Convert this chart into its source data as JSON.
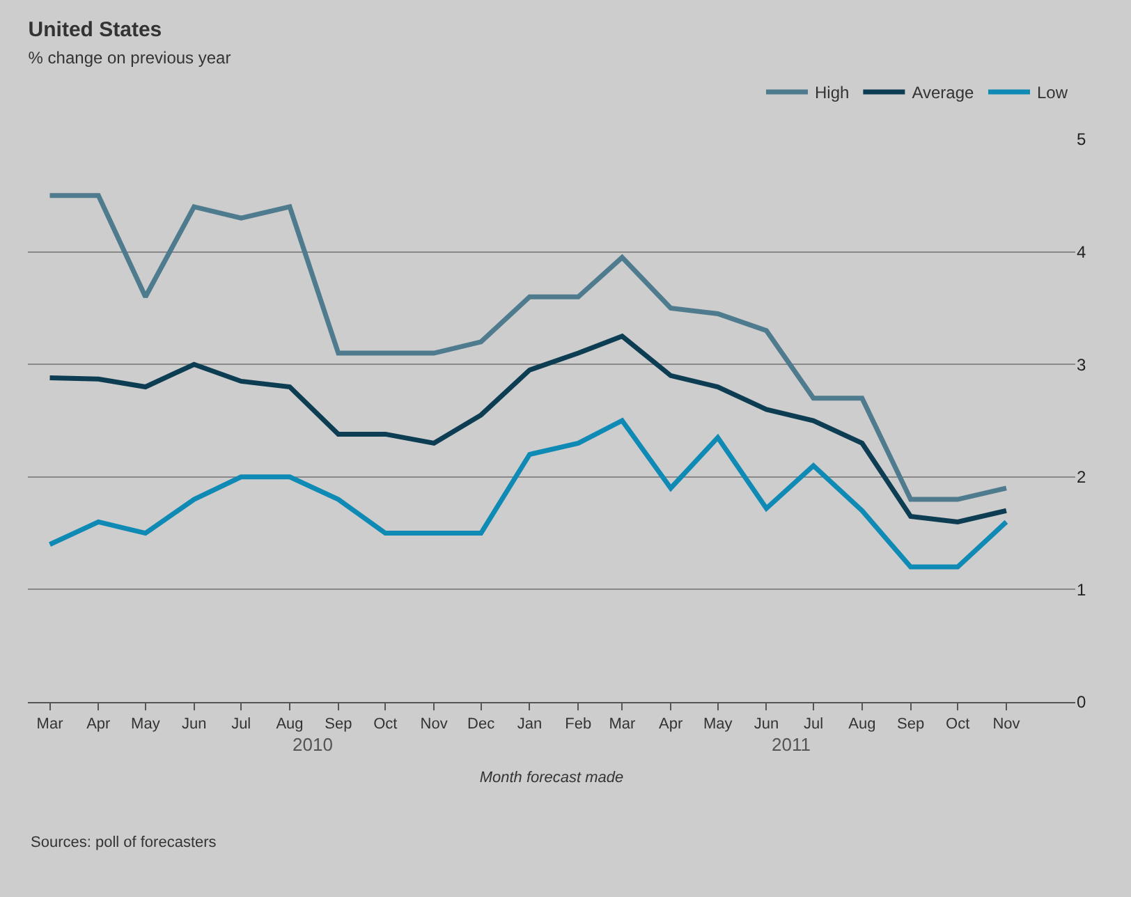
{
  "chart_data": {
    "type": "line",
    "title": "United States",
    "subtitle": "% change on previous year",
    "xlabel": "Month forecast made",
    "x": [
      "2010-03",
      "2010-04",
      "2010-05",
      "2010-06",
      "2010-07",
      "2010-08",
      "2010-09",
      "2010-10",
      "2010-11",
      "2010-12",
      "2011-01",
      "2011-02",
      "2011-03",
      "2011-04",
      "2011-05",
      "2011-06",
      "2011-07",
      "2011-08",
      "2011-09",
      "2011-10",
      "2011-11"
    ],
    "series": [
      {
        "name": "High",
        "color": "#4f7b8e",
        "values": [
          4.5,
          4.5,
          3.6,
          4.4,
          4.3,
          4.4,
          3.1,
          3.1,
          3.1,
          3.2,
          3.6,
          3.6,
          3.95,
          3.5,
          3.45,
          3.3,
          2.7,
          2.7,
          1.8,
          1.8,
          1.9
        ]
      },
      {
        "name": "Average",
        "color": "#0d3d52",
        "values": [
          2.88,
          2.87,
          2.8,
          3.0,
          2.85,
          2.8,
          2.38,
          2.38,
          2.3,
          2.55,
          2.95,
          3.1,
          3.25,
          2.9,
          2.8,
          2.6,
          2.5,
          2.3,
          1.65,
          1.6,
          1.7
        ]
      },
      {
        "name": "Low",
        "color": "#0f8ab5",
        "values": [
          1.4,
          1.6,
          1.5,
          1.8,
          2.0,
          2.0,
          1.8,
          1.5,
          1.5,
          1.5,
          2.2,
          2.3,
          2.5,
          1.9,
          2.35,
          1.72,
          2.1,
          1.7,
          1.2,
          1.2,
          1.6
        ]
      }
    ],
    "xlim": [
      "2010-02-15",
      "2011-12-15"
    ],
    "xticks": [
      {
        "value": "2010-03",
        "label": "Mar"
      },
      {
        "value": "2010-04",
        "label": "Apr"
      },
      {
        "value": "2010-05",
        "label": "May"
      },
      {
        "value": "2010-06",
        "label": "Jun"
      },
      {
        "value": "2010-07",
        "label": "Jul"
      },
      {
        "value": "2010-08",
        "label": "Aug"
      },
      {
        "value": "2010-09",
        "label": "Sep"
      },
      {
        "value": "2010-10",
        "label": "Oct"
      },
      {
        "value": "2010-11",
        "label": "Nov"
      },
      {
        "value": "2010-12",
        "label": "Dec"
      },
      {
        "value": "2011-01",
        "label": "Jan"
      },
      {
        "value": "2011-02",
        "label": "Feb"
      },
      {
        "value": "2011-03",
        "label": "Mar"
      },
      {
        "value": "2011-04",
        "label": "Apr"
      },
      {
        "value": "2011-05",
        "label": "May"
      },
      {
        "value": "2011-06",
        "label": "Jun"
      },
      {
        "value": "2011-07",
        "label": "Jul"
      },
      {
        "value": "2011-08",
        "label": "Aug"
      },
      {
        "value": "2011-09",
        "label": "Sep"
      },
      {
        "value": "2011-10",
        "label": "Oct"
      },
      {
        "value": "2011-11",
        "label": "Nov"
      }
    ],
    "ylim": [
      0,
      5
    ],
    "yticks": [
      0,
      1,
      2,
      3,
      4,
      5
    ],
    "grid": "y",
    "legend": "top right",
    "marker": "none",
    "line_style": "solid",
    "annotations": [
      "2010",
      "2011",
      "Sources: poll of forecasters"
    ]
  }
}
